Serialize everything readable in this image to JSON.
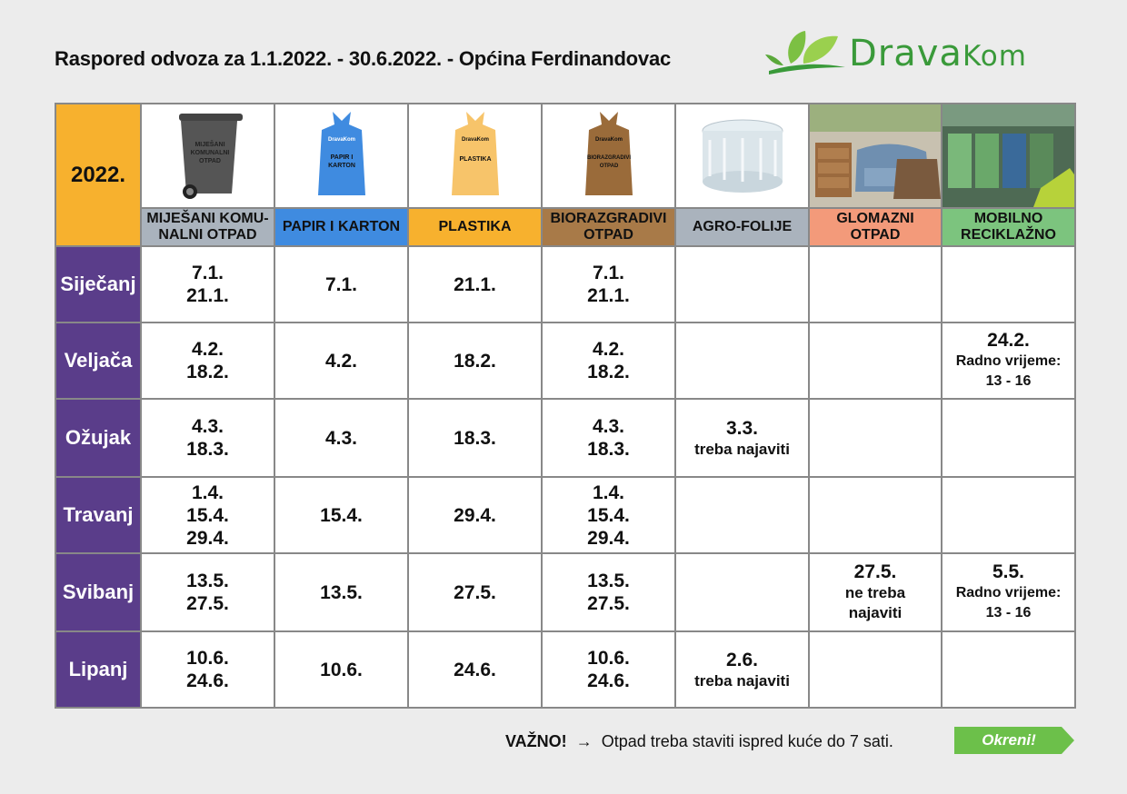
{
  "title": "Raspored odvoza za 1.1.2022. - 30.6.2022. - Općina Ferdinandovac",
  "logo": {
    "text_first": "Drava",
    "text_second": "Kom",
    "accent": "#3a9a3a"
  },
  "year": "2022.",
  "icons": {
    "komunalni": "MIJEŠANI KOMUNALNI OTPAD",
    "bag_brand": "DravaKom",
    "papir": "PAPIR I KARTON",
    "plastika": "PLASTIKA",
    "bio": "BIORAZGRADIVI OTPAD"
  },
  "headers": [
    {
      "key": "komunalni",
      "label_1": "MIJEŠANI KOMU-",
      "label_2": "NALNI OTPAD",
      "color": "#aab3bd"
    },
    {
      "key": "papir",
      "label_1": "PAPIR I KARTON",
      "label_2": "",
      "color": "#3f8be0"
    },
    {
      "key": "plastika",
      "label_1": "PLASTIKA",
      "label_2": "",
      "color": "#f7b12e"
    },
    {
      "key": "bio",
      "label_1": "BIORAZGRADIVI",
      "label_2": "OTPAD",
      "color": "#a87a48"
    },
    {
      "key": "agro",
      "label_1": "AGRO-FOLIJE",
      "label_2": "",
      "color": "#aab3bd"
    },
    {
      "key": "glomazni",
      "label_1": "GLOMAZNI",
      "label_2": "OTPAD",
      "color": "#f39a7a"
    },
    {
      "key": "mobilno",
      "label_1": "MOBILNO",
      "label_2": "RECIKLAŽNO",
      "color": "#7cc47e"
    }
  ],
  "months": [
    {
      "name": "Siječanj",
      "cells": [
        [
          "7.1.",
          "21.1."
        ],
        [
          "7.1."
        ],
        [
          "21.1."
        ],
        [
          "7.1.",
          "21.1."
        ],
        [],
        [],
        []
      ]
    },
    {
      "name": "Veljača",
      "cells": [
        [
          "4.2.",
          "18.2."
        ],
        [
          "4.2."
        ],
        [
          "18.2."
        ],
        [
          "4.2.",
          "18.2."
        ],
        [],
        [],
        [
          "24.2.",
          "Radno vrijeme:",
          "13 - 16"
        ]
      ]
    },
    {
      "name": "Ožujak",
      "cells": [
        [
          "4.3.",
          "18.3."
        ],
        [
          "4.3."
        ],
        [
          "18.3."
        ],
        [
          "4.3.",
          "18.3."
        ],
        [
          "3.3.",
          "treba najaviti"
        ],
        [],
        []
      ]
    },
    {
      "name": "Travanj",
      "cells": [
        [
          "1.4.",
          "15.4.",
          "29.4."
        ],
        [
          "15.4."
        ],
        [
          "29.4."
        ],
        [
          "1.4.",
          "15.4.",
          "29.4."
        ],
        [],
        [],
        []
      ]
    },
    {
      "name": "Svibanj",
      "cells": [
        [
          "13.5.",
          "27.5."
        ],
        [
          "13.5."
        ],
        [
          "27.5."
        ],
        [
          "13.5.",
          "27.5."
        ],
        [],
        [
          "27.5.",
          "ne treba",
          "najaviti"
        ],
        [
          "5.5.",
          "Radno vrijeme:",
          "13 - 16"
        ]
      ]
    },
    {
      "name": "Lipanj",
      "cells": [
        [
          "10.6.",
          "24.6."
        ],
        [
          "10.6."
        ],
        [
          "24.6."
        ],
        [
          "10.6.",
          "24.6."
        ],
        [
          "2.6.",
          "treba najaviti"
        ],
        [],
        []
      ]
    }
  ],
  "footer": {
    "important": "VAŽNO!",
    "arrow": "→",
    "text": "Otpad treba staviti ispred kuće do 7 sati.",
    "button": "Okreni!",
    "button_color": "#6cc04a"
  }
}
